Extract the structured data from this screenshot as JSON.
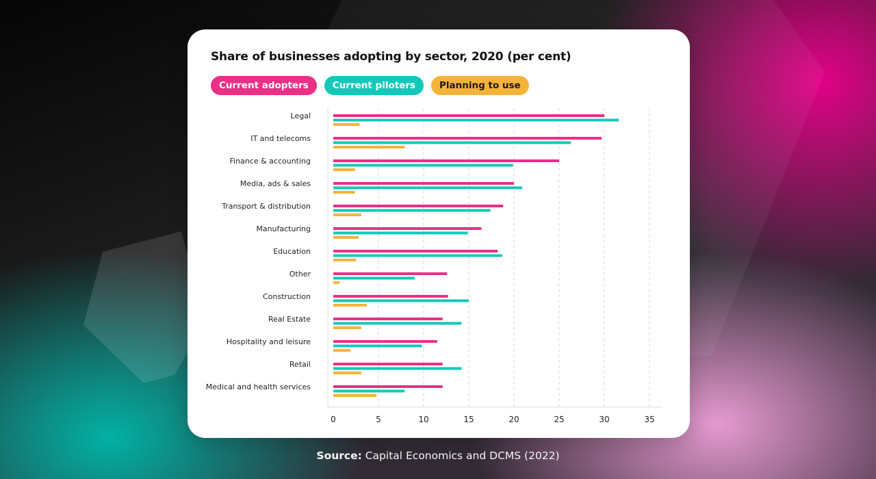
{
  "colors": {
    "adopters": "#ec2f86",
    "pilots": "#14c8b8",
    "planning": "#f6b33a",
    "grid": "#f2c9da",
    "axis": "#dddddd"
  },
  "legend": [
    {
      "label": "Current adopters",
      "color": "#ec2f86"
    },
    {
      "label": "Current piloters",
      "color": "#14c8b8"
    },
    {
      "label": "Planning to use",
      "color": "#f6b33a"
    }
  ],
  "source": {
    "label": "Source:",
    "text": "Capital Economics and DCMS (2022)"
  },
  "chart_data": {
    "type": "bar",
    "orientation": "horizontal",
    "title": "Share of businesses adopting by sector, 2020 (per cent)",
    "xlabel": "",
    "ylabel": "",
    "xlim": [
      0,
      35
    ],
    "xticks": [
      0,
      5,
      10,
      15,
      20,
      25,
      30,
      35
    ],
    "grid": true,
    "legend_position": "top-left",
    "categories": [
      "Legal",
      "IT and telecoms",
      "Finance & accounting",
      "Media, ads & sales",
      "Transport & distribution",
      "Manufacturing",
      "Education",
      "Other",
      "Construction",
      "Real Estate",
      "Hospitality and leisure",
      "Retail",
      "Medical and health services"
    ],
    "series": [
      {
        "name": "Current adopters",
        "values": [
          30,
          29.7,
          25,
          20,
          18.8,
          16.4,
          18.2,
          12.6,
          12.7,
          12.1,
          11.5,
          12.1,
          12.1
        ]
      },
      {
        "name": "Current piloters",
        "values": [
          31.6,
          26.3,
          19.9,
          20.9,
          17.4,
          14.9,
          18.7,
          9,
          15,
          14.2,
          9.8,
          14.2,
          7.9
        ]
      },
      {
        "name": "Planning to use",
        "values": [
          2.9,
          7.9,
          2.4,
          2.4,
          3.1,
          2.8,
          2.5,
          0.7,
          3.7,
          3.1,
          1.9,
          3.1,
          4.8
        ]
      }
    ]
  }
}
